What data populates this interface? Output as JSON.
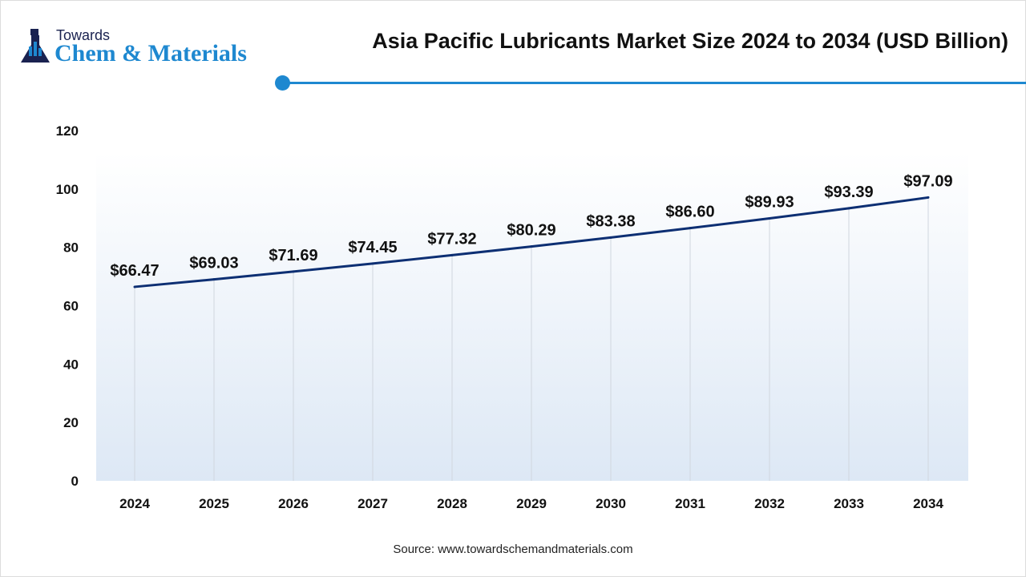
{
  "logo": {
    "line1": "Towards",
    "line2": "Chem & Materials"
  },
  "source": "Source: www.towardschemandmaterials.com",
  "colors": {
    "line": "#0d2f73",
    "accent": "#1e88d0"
  },
  "chart_data": {
    "type": "line",
    "title": "Asia Pacific Lubricants Market Size 2024 to 2034 (USD Billion)",
    "categories": [
      "2024",
      "2025",
      "2026",
      "2027",
      "2028",
      "2029",
      "2030",
      "2031",
      "2032",
      "2033",
      "2034"
    ],
    "values": [
      66.47,
      69.03,
      71.69,
      74.45,
      77.32,
      80.29,
      83.38,
      86.6,
      89.93,
      93.39,
      97.09
    ],
    "labels": [
      "$66.47",
      "$69.03",
      "$71.69",
      "$74.45",
      "$77.32",
      "$80.29",
      "$83.38",
      "$86.60",
      "$89.93",
      "$93.39",
      "$97.09"
    ],
    "yticks": [
      "0",
      "20",
      "40",
      "60",
      "80",
      "100",
      "120"
    ],
    "ylim": [
      0,
      120
    ],
    "xlabel": "",
    "ylabel": ""
  }
}
